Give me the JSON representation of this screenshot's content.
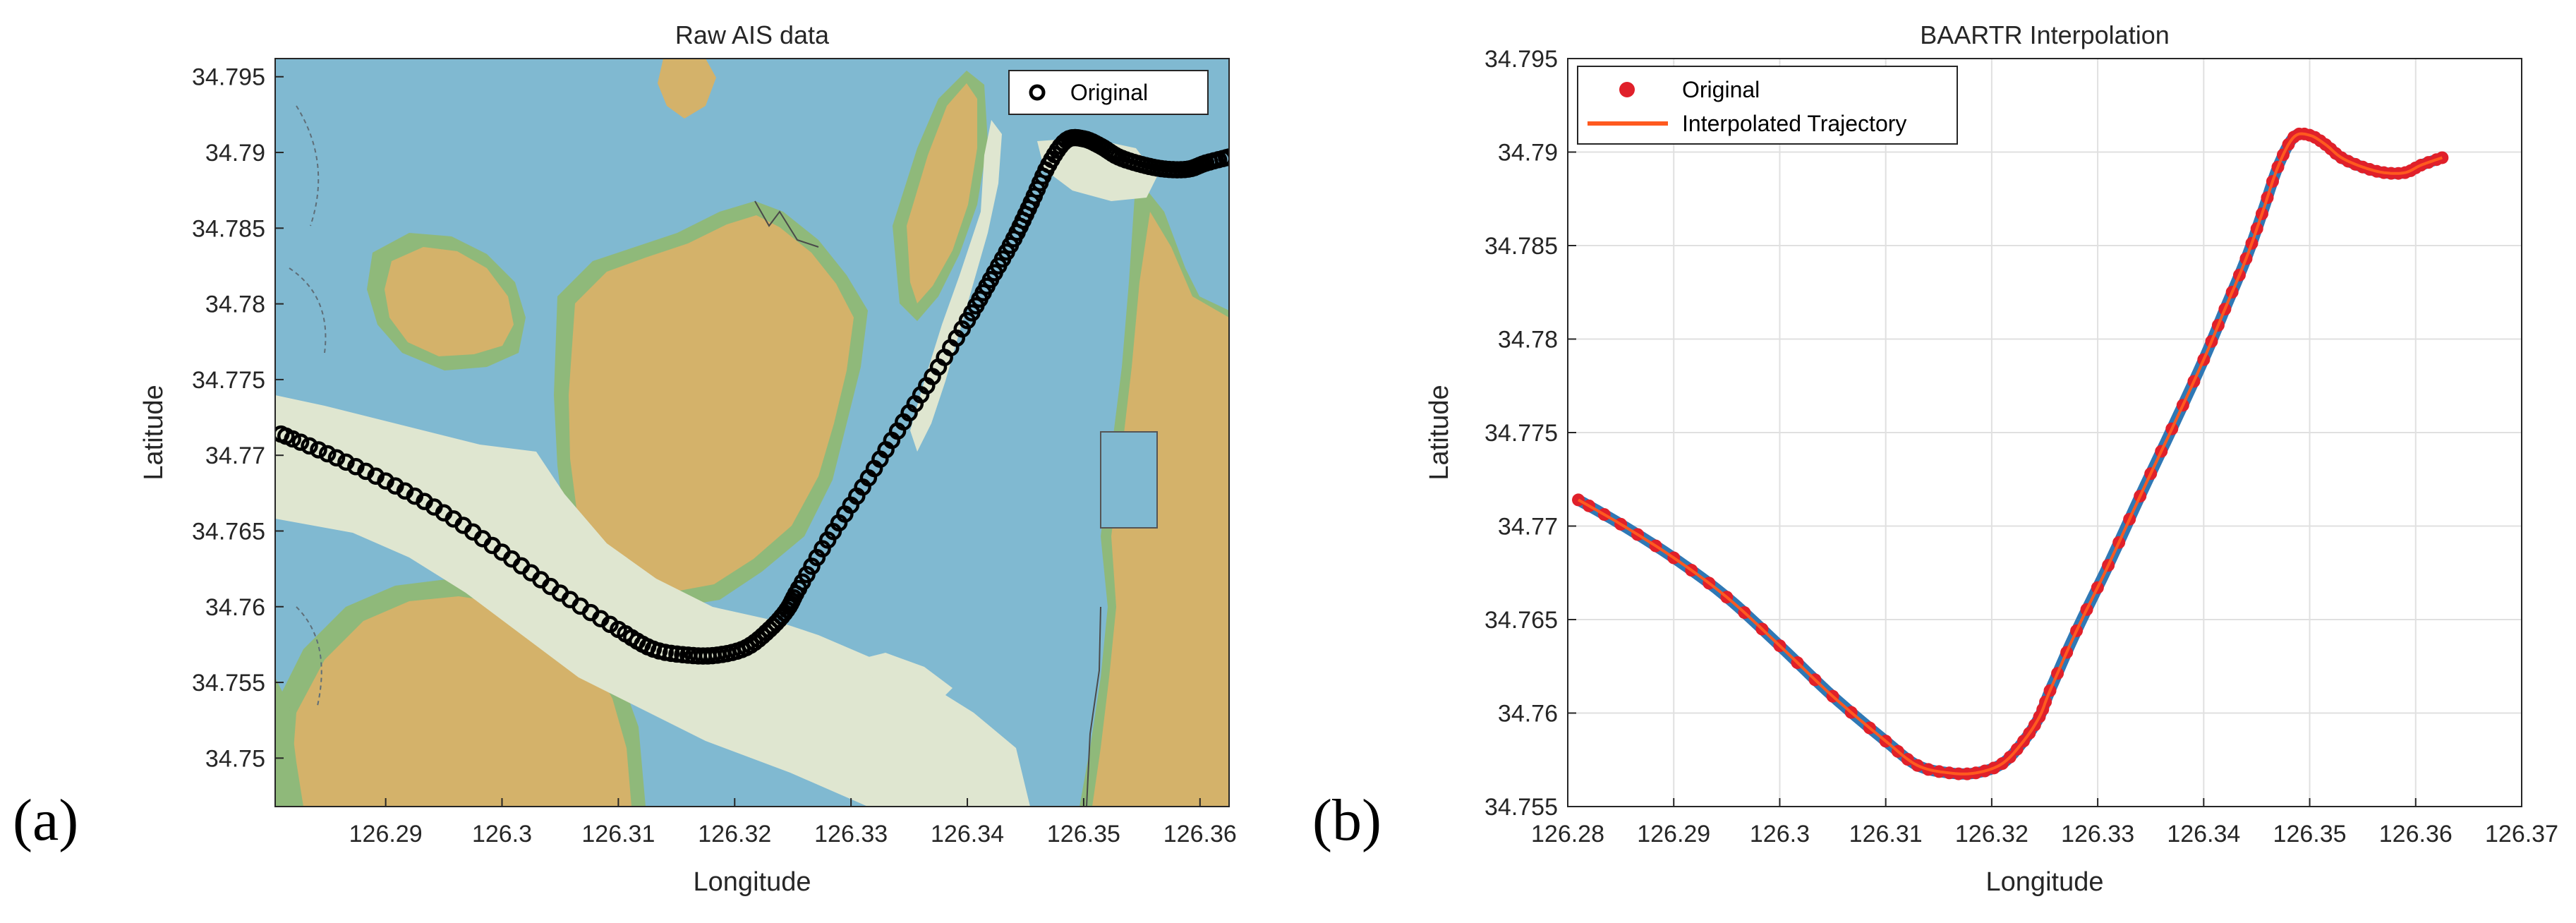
{
  "chart_data": [
    {
      "type": "scatter",
      "title": "Raw AIS data",
      "xlabel": "Longitude",
      "ylabel": "Latitude",
      "xlim": [
        126.2805,
        126.3625
      ],
      "ylim": [
        34.7468,
        34.7962
      ],
      "xticks": [
        126.29,
        126.3,
        126.31,
        126.32,
        126.33,
        126.34,
        126.35,
        126.36
      ],
      "xtick_labels": [
        "126.29",
        "126.3",
        "126.31",
        "126.32",
        "126.33",
        "126.34",
        "126.35",
        "126.36"
      ],
      "yticks": [
        34.75,
        34.755,
        34.76,
        34.765,
        34.77,
        34.775,
        34.78,
        34.785,
        34.79,
        34.795
      ],
      "ytick_labels": [
        "34.75",
        "34.755",
        "34.76",
        "34.765",
        "34.77",
        "34.775",
        "34.78",
        "34.785",
        "34.79",
        "34.795"
      ],
      "grid": false,
      "background": "nautical chart",
      "legend_position": "top-right",
      "series": [
        {
          "name": "Original",
          "marker": "open circle",
          "color": "#000000",
          "x": [
            126.281,
            126.285,
            126.29,
            126.295,
            126.3,
            126.305,
            126.31,
            126.313,
            126.316,
            126.3185,
            126.321,
            126.323,
            126.3245,
            126.3255,
            126.328,
            126.331,
            126.334,
            126.337,
            126.34,
            126.342,
            126.344,
            126.3455,
            126.347,
            126.3485,
            126.35,
            126.3515,
            126.353,
            126.355,
            126.357,
            126.359,
            126.3605,
            126.3625
          ],
          "y": [
            34.7714,
            34.7701,
            34.7683,
            34.7662,
            34.7636,
            34.7609,
            34.7585,
            34.7572,
            34.7568,
            34.7568,
            34.7573,
            34.7585,
            34.7598,
            34.7612,
            34.7644,
            34.7679,
            34.7716,
            34.7752,
            34.7789,
            34.7816,
            34.7843,
            34.7867,
            34.7892,
            34.7908,
            34.7909,
            34.7904,
            34.7897,
            34.7892,
            34.7889,
            34.7889,
            34.7893,
            34.7897
          ]
        }
      ]
    },
    {
      "type": "line",
      "title": "BAARTR Interpolation",
      "xlabel": "Longitude",
      "ylabel": "Latitude",
      "xlim": [
        126.28,
        126.37
      ],
      "ylim": [
        34.755,
        34.795
      ],
      "xticks": [
        126.28,
        126.29,
        126.3,
        126.31,
        126.32,
        126.33,
        126.34,
        126.35,
        126.36,
        126.37
      ],
      "xtick_labels": [
        "126.28",
        "126.29",
        "126.3",
        "126.31",
        "126.32",
        "126.33",
        "126.34",
        "126.35",
        "126.36",
        "126.37"
      ],
      "yticks": [
        34.755,
        34.76,
        34.765,
        34.77,
        34.775,
        34.78,
        34.785,
        34.79,
        34.795
      ],
      "ytick_labels": [
        "34.755",
        "34.76",
        "34.765",
        "34.77",
        "34.775",
        "34.78",
        "34.785",
        "34.79",
        "34.795"
      ],
      "grid": true,
      "legend_position": "top-left",
      "series": [
        {
          "name": "Original",
          "marker": "filled circle",
          "color": "#e0202a",
          "x": [
            126.281,
            126.285,
            126.29,
            126.295,
            126.3,
            126.305,
            126.31,
            126.313,
            126.316,
            126.3185,
            126.321,
            126.323,
            126.3245,
            126.3255,
            126.328,
            126.331,
            126.334,
            126.337,
            126.34,
            126.342,
            126.344,
            126.3455,
            126.347,
            126.3485,
            126.35,
            126.3515,
            126.353,
            126.355,
            126.357,
            126.359,
            126.3605,
            126.3625
          ],
          "y": [
            34.7714,
            34.7701,
            34.7683,
            34.7662,
            34.7636,
            34.7609,
            34.7585,
            34.7572,
            34.7568,
            34.7568,
            34.7573,
            34.7585,
            34.7598,
            34.7612,
            34.7644,
            34.7679,
            34.7716,
            34.7752,
            34.7789,
            34.7816,
            34.7843,
            34.7867,
            34.7892,
            34.7908,
            34.7909,
            34.7904,
            34.7897,
            34.7892,
            34.7889,
            34.7889,
            34.7893,
            34.7897
          ]
        },
        {
          "name": "Interpolated Trajectory",
          "marker": "line",
          "color": "#ff5a1f",
          "x": [
            126.281,
            126.285,
            126.29,
            126.295,
            126.3,
            126.305,
            126.31,
            126.313,
            126.316,
            126.3185,
            126.321,
            126.323,
            126.3245,
            126.3255,
            126.328,
            126.331,
            126.334,
            126.337,
            126.34,
            126.342,
            126.344,
            126.3455,
            126.347,
            126.3485,
            126.35,
            126.3515,
            126.353,
            126.355,
            126.357,
            126.359,
            126.3605,
            126.3625
          ],
          "y": [
            34.7714,
            34.7701,
            34.7683,
            34.7662,
            34.7636,
            34.7609,
            34.7585,
            34.7572,
            34.7568,
            34.7568,
            34.7573,
            34.7585,
            34.7598,
            34.7612,
            34.7644,
            34.7679,
            34.7716,
            34.7752,
            34.7789,
            34.7816,
            34.7843,
            34.7867,
            34.7892,
            34.7908,
            34.7909,
            34.7904,
            34.7897,
            34.7892,
            34.7889,
            34.7889,
            34.7893,
            34.7897
          ]
        }
      ]
    }
  ],
  "panel_labels": [
    "(a)",
    "(b)"
  ],
  "colors": {
    "sea": "#80b9d1",
    "land": "#d4b26a",
    "shallow": "#8fb97a",
    "channel": "#dfe6d0",
    "grid": "#e0e0e0",
    "axis": "#262626",
    "measured_track": "#2f78b5"
  }
}
